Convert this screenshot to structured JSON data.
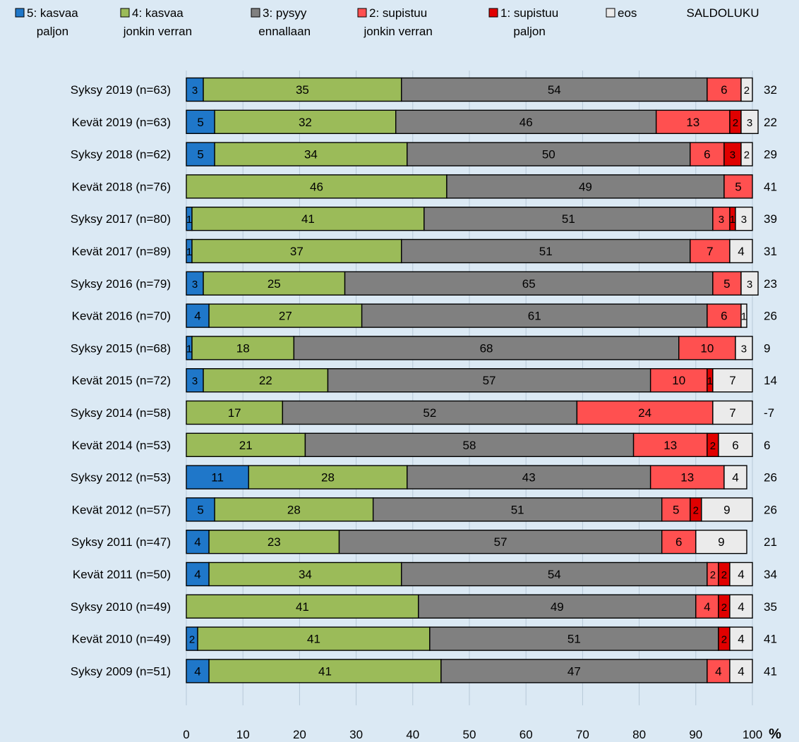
{
  "chart_data": {
    "type": "bar",
    "orientation": "horizontal",
    "stacked": true,
    "title": "",
    "xlabel": "%",
    "ylabel": "",
    "xlim": [
      0,
      100
    ],
    "x_ticks": [
      0,
      10,
      20,
      30,
      40,
      50,
      60,
      70,
      80,
      90,
      100
    ],
    "grid": true,
    "legend_position": "top",
    "saldo_label": "SALDOLUKU",
    "categories": [
      "Syksy 2019 (n=63)",
      "Kevät 2019 (n=63)",
      "Syksy 2018 (n=62)",
      "Kevät 2018 (n=76)",
      "Syksy 2017 (n=80)",
      "Kevät 2017 (n=89)",
      "Syksy 2016 (n=79)",
      "Kevät 2016 (n=70)",
      "Syksy 2015 (n=68)",
      "Kevät 2015 (n=72)",
      "Syksy 2014 (n=58)",
      "Kevät 2014 (n=53)",
      "Syksy 2012 (n=53)",
      "Kevät 2012 (n=57)",
      "Syksy 2011 (n=47)",
      "Kevät 2011 (n=50)",
      "Syksy 2010 (n=49)",
      "Kevät 2010 (n=49)",
      "Syksy 2009 (n=51)"
    ],
    "series": [
      {
        "name": "5: kasvaa paljon",
        "legend_lines": [
          "5: kasvaa",
          "paljon"
        ],
        "color": "#1f77c9",
        "values": [
          3,
          5,
          5,
          0,
          1,
          1,
          3,
          4,
          1,
          3,
          0,
          0,
          11,
          5,
          4,
          4,
          0,
          2,
          4
        ]
      },
      {
        "name": "4: kasvaa jonkin verran",
        "legend_lines": [
          "4: kasvaa",
          "jonkin verran"
        ],
        "color": "#9bbb59",
        "values": [
          35,
          32,
          34,
          46,
          41,
          37,
          25,
          27,
          18,
          22,
          17,
          21,
          28,
          28,
          23,
          34,
          41,
          41,
          41
        ]
      },
      {
        "name": "3: pysyy ennallaan",
        "legend_lines": [
          "3: pysyy",
          "ennallaan"
        ],
        "color": "#808080",
        "values": [
          54,
          46,
          50,
          49,
          51,
          51,
          65,
          61,
          68,
          57,
          52,
          58,
          43,
          51,
          57,
          54,
          49,
          51,
          47
        ]
      },
      {
        "name": "2: supistuu jonkin verran",
        "legend_lines": [
          "2: supistuu",
          "jonkin verran"
        ],
        "color": "#ff5050",
        "values": [
          6,
          13,
          6,
          5,
          3,
          7,
          5,
          6,
          10,
          10,
          24,
          13,
          13,
          5,
          6,
          2,
          4,
          0,
          4
        ]
      },
      {
        "name": "1: supistuu paljon",
        "legend_lines": [
          "1: supistuu",
          "paljon"
        ],
        "color": "#e00000",
        "values": [
          0,
          2,
          3,
          0,
          1,
          0,
          0,
          0,
          0,
          1,
          0,
          2,
          0,
          2,
          0,
          2,
          2,
          2,
          0
        ]
      },
      {
        "name": "eos",
        "legend_lines": [
          "eos"
        ],
        "color": "#ebebeb",
        "values": [
          2,
          3,
          2,
          0,
          3,
          4,
          3,
          1,
          3,
          7,
          7,
          6,
          4,
          9,
          9,
          4,
          4,
          4,
          4
        ]
      }
    ],
    "saldo": [
      32,
      22,
      29,
      41,
      39,
      31,
      23,
      26,
      9,
      14,
      -7,
      6,
      26,
      26,
      21,
      34,
      35,
      41,
      41
    ]
  }
}
